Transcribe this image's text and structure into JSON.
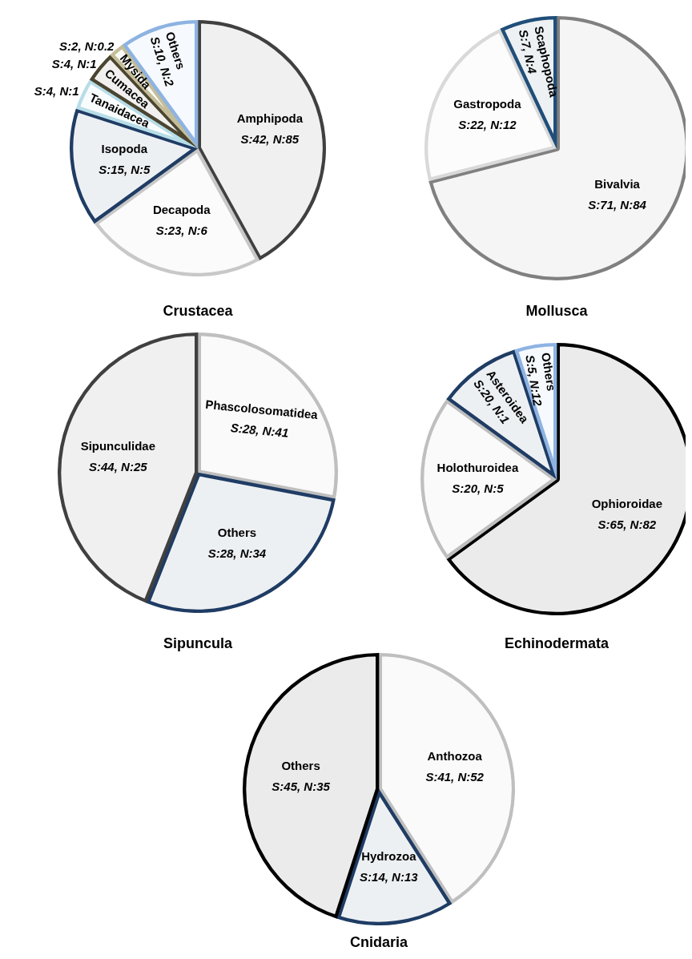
{
  "chart_data": [
    {
      "type": "pie",
      "title": "Crustacea",
      "categories": [
        "Amphipoda",
        "Decapoda",
        "Isopoda",
        "Tanaidacea",
        "Cumacea",
        "Mysida",
        "Others"
      ],
      "values": [
        42,
        23,
        15,
        4,
        4,
        2,
        10
      ],
      "colors": [
        "#404040",
        "#c8c8c8",
        "#1f3c64",
        "#b7dde8",
        "#4a4530",
        "#c4bd97",
        "#8db3e2"
      ],
      "value_labels": [
        "S:42, N:85",
        "S:23, N:6",
        "S:15, N:5",
        "S:4, N:1",
        "S:4, N:1",
        "S:2, N:0.2",
        "S:10, N:2"
      ]
    },
    {
      "type": "pie",
      "title": "Mollusca",
      "categories": [
        "Bivalvia",
        "Gastropoda",
        "Scaphopoda"
      ],
      "values": [
        71,
        22,
        7
      ],
      "colors": [
        "#808080",
        "#d9d9d9",
        "#1f4e79"
      ],
      "value_labels": [
        "S:71, N:84",
        "S:22, N:12",
        "S:7, N:4"
      ]
    },
    {
      "type": "pie",
      "title": "Sipuncula",
      "categories": [
        "Phascolosomatidea",
        "Others",
        "Sipunculidae"
      ],
      "values": [
        28,
        28,
        44
      ],
      "colors": [
        "#bfbfbf",
        "#1f3c64",
        "#404040"
      ],
      "value_labels": [
        "S:28, N:41",
        "S:28, N:34",
        "S:44, N:25"
      ]
    },
    {
      "type": "pie",
      "title": "Echinodermata",
      "categories": [
        "Ophioroidae",
        "Holothuroidea",
        "Asteroidea",
        "Others"
      ],
      "values": [
        65,
        20,
        10,
        5
      ],
      "colors": [
        "#000000",
        "#bfbfbf",
        "#1f3c64",
        "#8db3e2"
      ],
      "value_labels": [
        "S:65, N:82",
        "S:20, N:5",
        "S:20, N:1",
        "S:5, N:12"
      ]
    },
    {
      "type": "pie",
      "title": "Cnidaria",
      "categories": [
        "Anthozoa",
        "Hydrozoa",
        "Others"
      ],
      "values": [
        41,
        14,
        45
      ],
      "colors": [
        "#bfbfbf",
        "#1f3c64",
        "#000000"
      ],
      "value_labels": [
        "S:41, N:52",
        "S:14, N:13",
        "S:45, N:35"
      ]
    }
  ]
}
